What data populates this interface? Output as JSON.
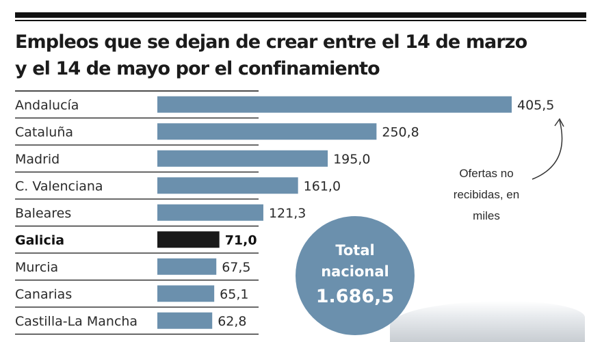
{
  "title": {
    "line1": "Empleos que se dejan de crear entre el 14 de marzo",
    "line2": "y el 14 de mayo por el confinamiento"
  },
  "note": {
    "line1": "Ofertas no",
    "line2": "recibidas, en",
    "line3": "miles"
  },
  "total": {
    "line1": "Total",
    "line2": "nacional",
    "value": "1.686,5"
  },
  "colors": {
    "bar": "#6b90ad",
    "highlight": "#1a1a1a",
    "rule": "#111111"
  },
  "chart_data": {
    "type": "bar",
    "orientation": "horizontal",
    "title": "Empleos que se dejan de crear entre el 14 de marzo y el 14 de mayo por el confinamiento",
    "unit": "Ofertas no recibidas, en miles",
    "categories": [
      "Andalucía",
      "Cataluña",
      "Madrid",
      "C. Valenciana",
      "Baleares",
      "Galicia",
      "Murcia",
      "Canarias",
      "Castilla-La Mancha"
    ],
    "values": [
      405.5,
      250.8,
      195.0,
      161.0,
      121.3,
      71.0,
      67.5,
      65.1,
      62.8
    ],
    "value_labels": [
      "405,5",
      "250,8",
      "195,0",
      "161,0",
      "121,3",
      "71,0",
      "67,5",
      "65,1",
      "62,8"
    ],
    "highlight": "Galicia",
    "total_label": "1.686,5"
  }
}
